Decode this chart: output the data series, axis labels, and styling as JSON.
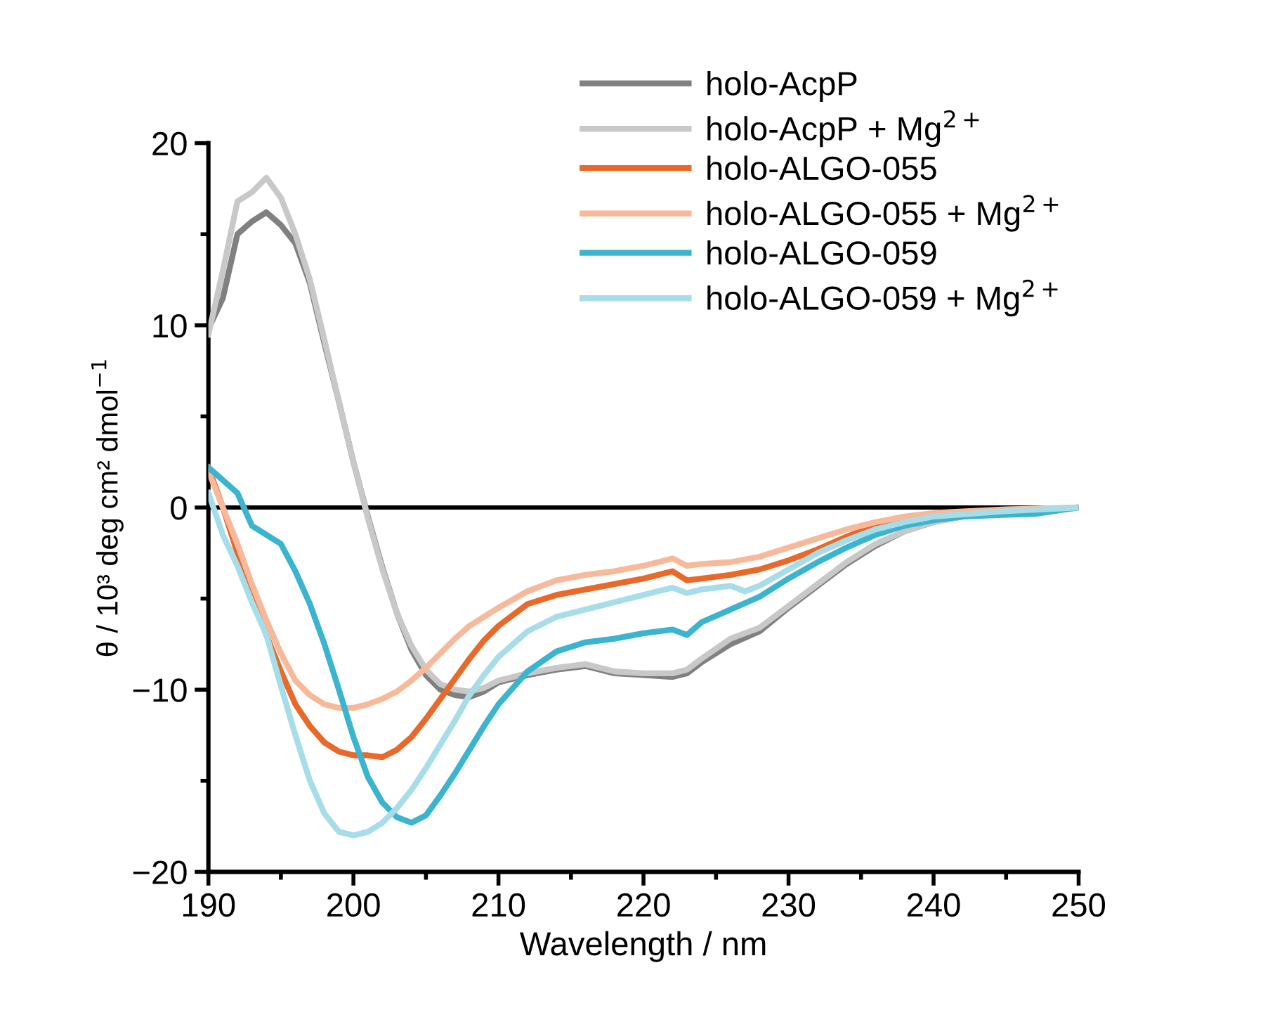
{
  "chart_data": {
    "type": "line",
    "xlabel": "Wavelength / nm",
    "ylabel": "θ / 10³ deg cm² dmol$^{−1}$",
    "xlim": [
      190,
      250
    ],
    "ylim": [
      -20,
      20
    ],
    "xticks": [
      190,
      200,
      210,
      220,
      230,
      240,
      250
    ],
    "yticks": [
      -20,
      -10,
      0,
      10,
      20
    ],
    "grid": false,
    "legend": "top right",
    "line_style": "solid",
    "marker": "none",
    "ref_lines": [
      {
        "axis": "y",
        "value": 0,
        "color": "#000000"
      }
    ],
    "series": [
      {
        "name": "holo-AcpP",
        "color": "#808080",
        "x": [
          190,
          191,
          192,
          193,
          194,
          195,
          196,
          197,
          198,
          199,
          200,
          201,
          202,
          203,
          204,
          205,
          206,
          207,
          208,
          209,
          210,
          212,
          214,
          216,
          218,
          220,
          222,
          223,
          224,
          226,
          228,
          230,
          232,
          234,
          236,
          238,
          240,
          242,
          245,
          250
        ],
        "values": [
          9.8,
          11.5,
          15,
          15.7,
          16.2,
          15.5,
          14.5,
          12.3,
          9,
          5.8,
          2.5,
          -0.5,
          -3.3,
          -5.8,
          -7.8,
          -9.2,
          -10.0,
          -10.3,
          -10.4,
          -10.1,
          -9.6,
          -9.2,
          -8.9,
          -8.7,
          -9.1,
          -9.2,
          -9.3,
          -9.1,
          -8.5,
          -7.5,
          -6.8,
          -5.5,
          -4.3,
          -3.1,
          -2.1,
          -1.3,
          -0.8,
          -0.5,
          -0.25,
          0
        ]
      },
      {
        "name": "holo-AcpP + Mg$^{2+}$",
        "color": "#c8c8c8",
        "x": [
          190,
          191,
          192,
          193,
          194,
          195,
          196,
          197,
          198,
          199,
          200,
          201,
          202,
          203,
          204,
          205,
          206,
          207,
          208,
          209,
          210,
          212,
          214,
          216,
          218,
          220,
          222,
          223,
          224,
          226,
          228,
          230,
          232,
          234,
          236,
          238,
          240,
          242,
          245,
          250
        ],
        "values": [
          9.5,
          13,
          16.8,
          17.3,
          18.1,
          17,
          15,
          12.5,
          9.2,
          5.8,
          2.5,
          -0.6,
          -3.4,
          -5.8,
          -7.6,
          -8.9,
          -9.7,
          -10.0,
          -10.1,
          -9.9,
          -9.5,
          -9.1,
          -8.8,
          -8.6,
          -9.0,
          -9.1,
          -9.1,
          -8.9,
          -8.3,
          -7.2,
          -6.6,
          -5.4,
          -4.2,
          -3.0,
          -2.0,
          -1.3,
          -0.8,
          -0.5,
          -0.25,
          0
        ]
      },
      {
        "name": "holo-ALGO-055",
        "color": "#e8692a",
        "x": [
          190,
          191,
          192,
          193,
          194,
          195,
          196,
          197,
          198,
          199,
          200,
          201,
          202,
          203,
          204,
          205,
          206,
          207,
          208,
          209,
          210,
          212,
          214,
          216,
          218,
          220,
          222,
          223,
          224,
          226,
          228,
          230,
          232,
          234,
          236,
          238,
          240,
          245,
          250
        ],
        "values": [
          2.2,
          0,
          -2.5,
          -4.8,
          -7,
          -9,
          -10.8,
          -12,
          -12.9,
          -13.4,
          -13.6,
          -13.6,
          -13.7,
          -13.3,
          -12.6,
          -11.6,
          -10.5,
          -9.4,
          -8.3,
          -7.3,
          -6.5,
          -5.3,
          -4.8,
          -4.5,
          -4.2,
          -3.9,
          -3.5,
          -4.0,
          -3.9,
          -3.7,
          -3.4,
          -2.9,
          -2.3,
          -1.6,
          -1.0,
          -0.6,
          -0.4,
          -0.15,
          0
        ]
      },
      {
        "name": "holo-ALGO-055 + Mg$^{2+}$",
        "color": "#f7b99a",
        "x": [
          190,
          191,
          192,
          193,
          194,
          195,
          196,
          197,
          198,
          199,
          200,
          201,
          202,
          203,
          204,
          205,
          206,
          207,
          208,
          210,
          212,
          214,
          216,
          218,
          220,
          222,
          223,
          224,
          226,
          228,
          230,
          232,
          234,
          236,
          238,
          240,
          245,
          250
        ],
        "values": [
          2.0,
          0,
          -2,
          -4.2,
          -6.2,
          -8,
          -9.5,
          -10.3,
          -10.8,
          -11,
          -11,
          -10.8,
          -10.5,
          -10.1,
          -9.5,
          -8.8,
          -8.0,
          -7.2,
          -6.5,
          -5.5,
          -4.6,
          -4.0,
          -3.7,
          -3.5,
          -3.2,
          -2.8,
          -3.2,
          -3.1,
          -3.0,
          -2.7,
          -2.2,
          -1.7,
          -1.2,
          -0.8,
          -0.5,
          -0.3,
          -0.1,
          0
        ]
      },
      {
        "name": "holo-ALGO-059",
        "color": "#3bb4cf",
        "x": [
          190,
          191,
          192,
          193,
          194,
          195,
          196,
          197,
          198,
          199,
          200,
          201,
          202,
          203,
          204,
          205,
          206,
          207,
          208,
          209,
          210,
          212,
          214,
          216,
          218,
          220,
          222,
          223,
          224,
          226,
          228,
          230,
          232,
          234,
          236,
          238,
          240,
          242,
          245,
          247,
          250
        ],
        "values": [
          2.2,
          1.5,
          0.8,
          -1.0,
          -1.5,
          -2.0,
          -3.5,
          -5.3,
          -7.5,
          -10,
          -12.6,
          -14.8,
          -16.2,
          -17.0,
          -17.3,
          -16.9,
          -15.8,
          -14.6,
          -13.3,
          -12.0,
          -10.8,
          -9.0,
          -7.9,
          -7.4,
          -7.2,
          -6.9,
          -6.7,
          -7.0,
          -6.3,
          -5.6,
          -4.9,
          -3.9,
          -3.0,
          -2.2,
          -1.5,
          -1.0,
          -0.7,
          -0.5,
          -0.4,
          -0.35,
          0
        ]
      },
      {
        "name": "holo-ALGO-059 + Mg$^{2+}$",
        "color": "#a6dde9",
        "x": [
          190,
          191,
          192,
          193,
          194,
          195,
          196,
          197,
          198,
          199,
          200,
          201,
          202,
          203,
          204,
          205,
          206,
          207,
          208,
          209,
          210,
          212,
          214,
          216,
          218,
          220,
          222,
          223,
          224,
          226,
          227,
          228,
          230,
          232,
          234,
          236,
          238,
          240,
          245,
          250
        ],
        "values": [
          0.8,
          -1.5,
          -3.2,
          -5.2,
          -7.0,
          -9.8,
          -12.5,
          -15,
          -16.8,
          -17.8,
          -18.0,
          -17.8,
          -17.3,
          -16.5,
          -15.5,
          -14.3,
          -13,
          -11.7,
          -10.3,
          -9.2,
          -8.2,
          -6.8,
          -6.0,
          -5.6,
          -5.2,
          -4.8,
          -4.4,
          -4.7,
          -4.5,
          -4.3,
          -4.6,
          -4.3,
          -3.4,
          -2.5,
          -1.8,
          -1.2,
          -0.8,
          -0.5,
          -0.2,
          0
        ]
      }
    ]
  }
}
